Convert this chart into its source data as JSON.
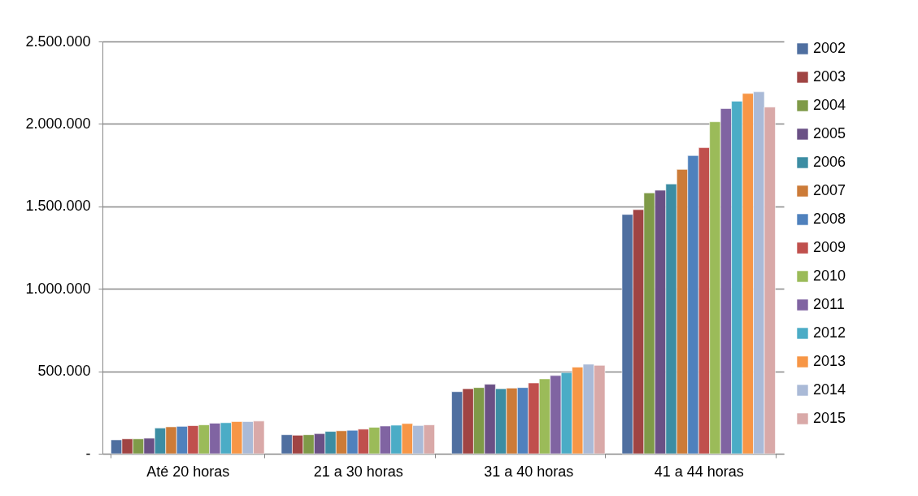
{
  "chart_data": {
    "type": "bar",
    "categories": [
      "Até 20 horas",
      "21 a 30 horas",
      "31 a 40 horas",
      "41 a 44 horas"
    ],
    "ylim": [
      0,
      2500000
    ],
    "yticks": [
      {
        "value": 0,
        "label": "-"
      },
      {
        "value": 500000,
        "label": "500.000"
      },
      {
        "value": 1000000,
        "label": "1.000.000"
      },
      {
        "value": 1500000,
        "label": "1.500.000"
      },
      {
        "value": 2000000,
        "label": "2.000.000"
      },
      {
        "value": 2500000,
        "label": "2.500.000"
      }
    ],
    "grid": "y",
    "legend": "right",
    "series": [
      {
        "name": "2002",
        "color": "#4f6fa0",
        "values": [
          84000,
          115000,
          376000,
          1451000
        ]
      },
      {
        "name": "2003",
        "color": "#a04443",
        "values": [
          90000,
          112000,
          394000,
          1480000
        ]
      },
      {
        "name": "2004",
        "color": "#7f9a48",
        "values": [
          90000,
          115000,
          401000,
          1582000
        ]
      },
      {
        "name": "2005",
        "color": "#6a5085",
        "values": [
          94000,
          122000,
          421000,
          1598000
        ]
      },
      {
        "name": "2006",
        "color": "#3c8da3",
        "values": [
          156000,
          135000,
          394000,
          1636000
        ]
      },
      {
        "name": "2007",
        "color": "#cc7b38",
        "values": [
          163000,
          139000,
          398000,
          1724000
        ]
      },
      {
        "name": "2008",
        "color": "#4f81bd",
        "values": [
          166000,
          142000,
          401000,
          1808000
        ]
      },
      {
        "name": "2009",
        "color": "#c0504d",
        "values": [
          170000,
          149000,
          429000,
          1856000
        ]
      },
      {
        "name": "2010",
        "color": "#9bbb59",
        "values": [
          175000,
          160000,
          454000,
          2013000
        ]
      },
      {
        "name": "2011",
        "color": "#8064a2",
        "values": [
          185000,
          168000,
          474000,
          2093000
        ]
      },
      {
        "name": "2012",
        "color": "#4bacc6",
        "values": [
          188000,
          173000,
          492000,
          2138000
        ]
      },
      {
        "name": "2013",
        "color": "#f79646",
        "values": [
          195000,
          183000,
          525000,
          2185000
        ]
      },
      {
        "name": "2014",
        "color": "#aabad7",
        "values": [
          195000,
          171000,
          543000,
          2195000
        ]
      },
      {
        "name": "2015",
        "color": "#d9a9a8",
        "values": [
          198000,
          175000,
          536000,
          2102000
        ]
      }
    ]
  }
}
